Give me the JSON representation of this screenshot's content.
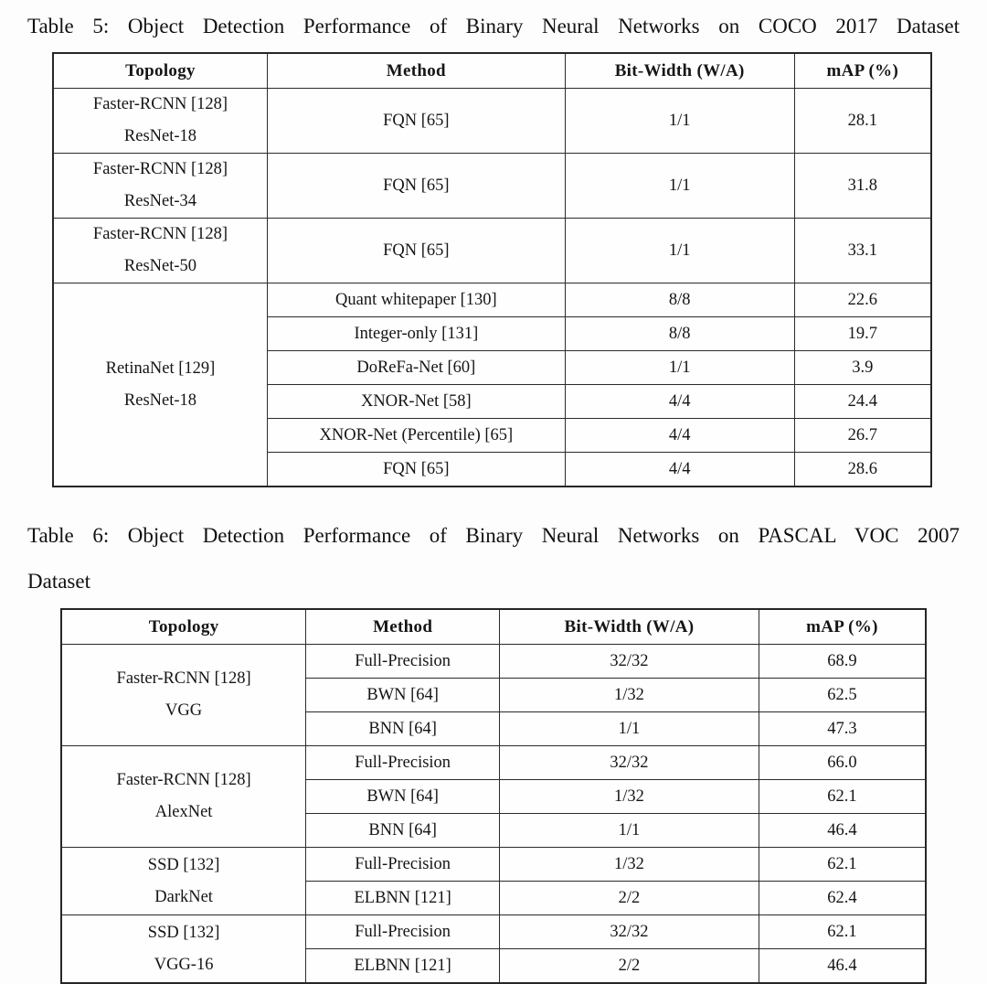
{
  "page": {
    "background": "#fdfdfd",
    "text_color": "#141414",
    "border_color": "#2b2b2b"
  },
  "tables": [
    {
      "caption": "Table 5: Object Detection Performance of Binary Neural Networks on COCO 2017 Dataset",
      "caption_line2": "",
      "columns": [
        "Topology",
        "Method",
        "Bit-Width (W/A)",
        "mAP (%)"
      ],
      "groups": [
        {
          "topology": [
            "Faster-RCNN [128]",
            "ResNet-18"
          ],
          "rows": [
            {
              "method": "FQN [65]",
              "bitwidth": "1/1",
              "map": "28.1"
            }
          ]
        },
        {
          "topology": [
            "Faster-RCNN [128]",
            "ResNet-34"
          ],
          "rows": [
            {
              "method": "FQN [65]",
              "bitwidth": "1/1",
              "map": "31.8"
            }
          ]
        },
        {
          "topology": [
            "Faster-RCNN [128]",
            "ResNet-50"
          ],
          "rows": [
            {
              "method": "FQN [65]",
              "bitwidth": "1/1",
              "map": "33.1"
            }
          ]
        },
        {
          "topology": [
            "RetinaNet [129]",
            "ResNet-18"
          ],
          "rows": [
            {
              "method": "Quant whitepaper [130]",
              "bitwidth": "8/8",
              "map": "22.6"
            },
            {
              "method": "Integer-only [131]",
              "bitwidth": "8/8",
              "map": "19.7"
            },
            {
              "method": "DoReFa-Net [60]",
              "bitwidth": "1/1",
              "map": "3.9"
            },
            {
              "method": "XNOR-Net [58]",
              "bitwidth": "4/4",
              "map": "24.4"
            },
            {
              "method": "XNOR-Net (Percentile) [65]",
              "bitwidth": "4/4",
              "map": "26.7"
            },
            {
              "method": "FQN [65]",
              "bitwidth": "4/4",
              "map": "28.6"
            }
          ]
        }
      ]
    },
    {
      "caption": "Table 6: Object Detection Performance of Binary Neural Networks on PASCAL VOC 2007",
      "caption_line2": "Dataset",
      "columns": [
        "Topology",
        "Method",
        "Bit-Width (W/A)",
        "mAP (%)"
      ],
      "groups": [
        {
          "topology": [
            "Faster-RCNN [128]",
            "VGG"
          ],
          "rows": [
            {
              "method": "Full-Precision",
              "bitwidth": "32/32",
              "map": "68.9"
            },
            {
              "method": "BWN [64]",
              "bitwidth": "1/32",
              "map": "62.5"
            },
            {
              "method": "BNN [64]",
              "bitwidth": "1/1",
              "map": "47.3"
            }
          ]
        },
        {
          "topology": [
            "Faster-RCNN [128]",
            "AlexNet"
          ],
          "rows": [
            {
              "method": "Full-Precision",
              "bitwidth": "32/32",
              "map": "66.0"
            },
            {
              "method": "BWN [64]",
              "bitwidth": "1/32",
              "map": "62.1"
            },
            {
              "method": "BNN [64]",
              "bitwidth": "1/1",
              "map": "46.4"
            }
          ]
        },
        {
          "topology": [
            "SSD [132]",
            "DarkNet"
          ],
          "rows": [
            {
              "method": "Full-Precision",
              "bitwidth": "1/32",
              "map": "62.1"
            },
            {
              "method": "ELBNN [121]",
              "bitwidth": "2/2",
              "map": "62.4"
            }
          ]
        },
        {
          "topology": [
            "SSD [132]",
            "VGG-16"
          ],
          "rows": [
            {
              "method": "Full-Precision",
              "bitwidth": "32/32",
              "map": "62.1"
            },
            {
              "method": "ELBNN [121]",
              "bitwidth": "2/2",
              "map": "46.4"
            }
          ]
        }
      ]
    }
  ]
}
